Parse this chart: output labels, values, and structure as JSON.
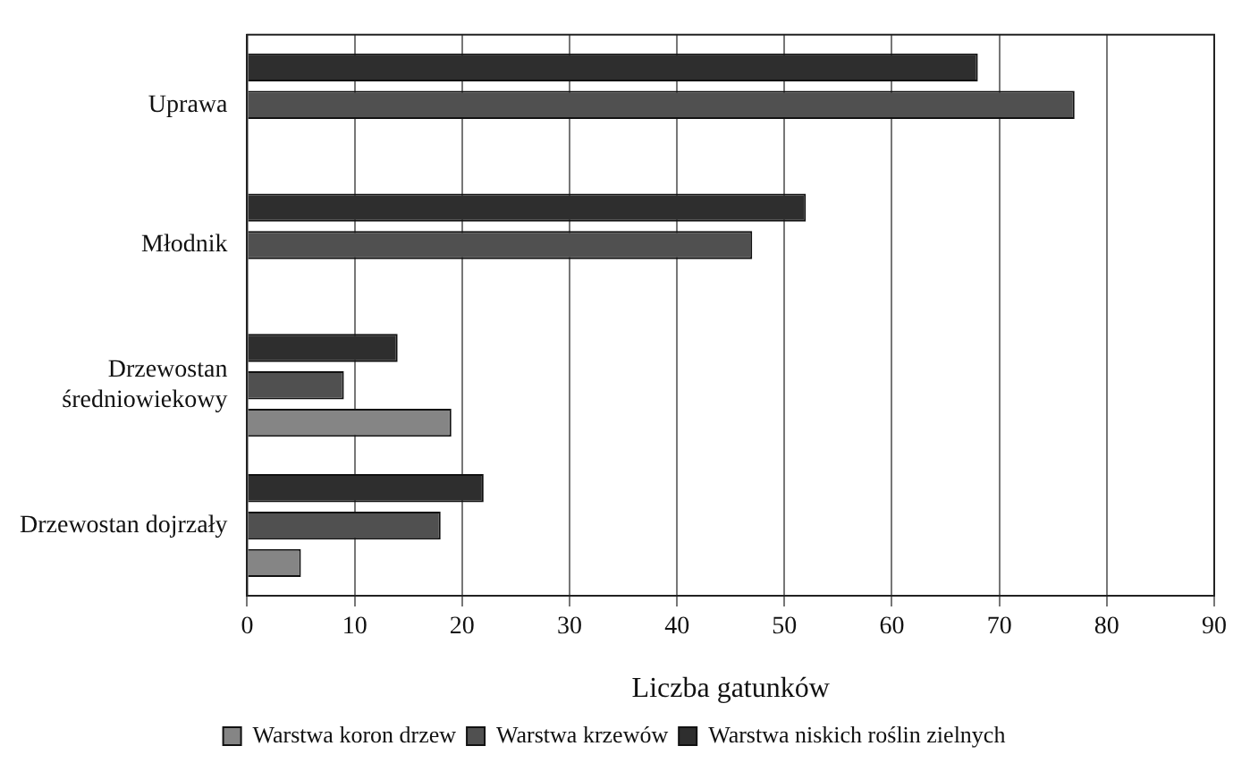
{
  "chart_data": {
    "type": "bar",
    "orientation": "horizontal",
    "xlabel": "Liczba gatunków",
    "categories": [
      "Uprawa",
      "Młodnik",
      "Drzewostan średniowiekowy",
      "Drzewostan dojrzały"
    ],
    "series": [
      {
        "name": "Warstwa koron drzew",
        "color": "#858585",
        "values": [
          0,
          0,
          19,
          5
        ]
      },
      {
        "name": "Warstwa krzewów",
        "color": "#505050",
        "values": [
          77,
          47,
          9,
          18
        ]
      },
      {
        "name": "Warstwa niskich roślin zielnych",
        "color": "#2e2e2e",
        "values": [
          68,
          52,
          14,
          22
        ]
      }
    ],
    "xlim": [
      0,
      90
    ],
    "xticks": [
      0,
      10,
      20,
      30,
      40,
      50,
      60,
      70,
      80,
      90
    ],
    "grid": "x",
    "legend": "bottom"
  }
}
